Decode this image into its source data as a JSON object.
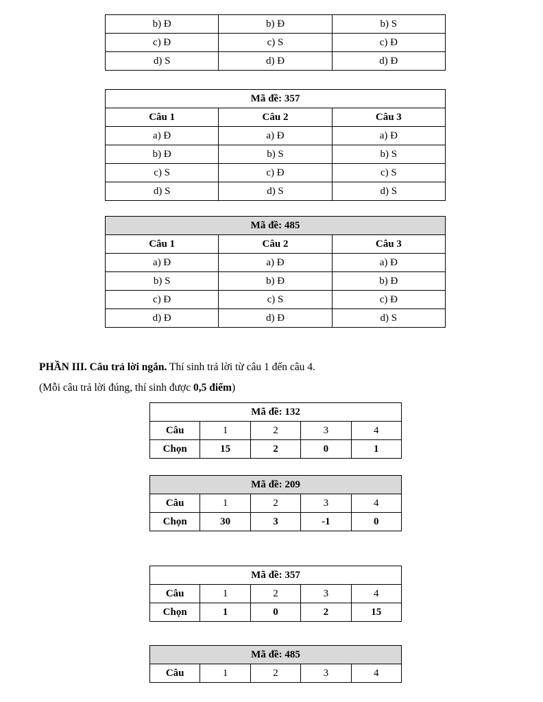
{
  "paragraphs": {
    "heading_bold": "PHẦN III. Câu trả lời ngắn.",
    "heading_rest": " Thí sinh trả lời từ câu 1 đến câu 4.",
    "note_prefix": "(Mỗi câu trả lời đúng, thí sinh được ",
    "note_bold": "0,5 điểm",
    "note_suffix": ")"
  },
  "colors": {
    "header_shading": "#d9d9d9",
    "table_border": "#000000"
  },
  "partial_table": {
    "rows": [
      [
        "b) Đ",
        "b) Đ",
        "b) S"
      ],
      [
        "c) Đ",
        "c) S",
        "c) Đ"
      ],
      [
        "d) S",
        "d) Đ",
        "d) Đ"
      ]
    ]
  },
  "tf_tables": [
    {
      "title": "Mã đề: 357",
      "header_shaded": false,
      "columns": [
        "Câu 1",
        "Câu 2",
        "Câu 3"
      ],
      "rows": [
        [
          "a) Đ",
          "a) Đ",
          "a) Đ"
        ],
        [
          "b) Đ",
          "b) S",
          "b) S"
        ],
        [
          "c) S",
          "c) Đ",
          "c) S"
        ],
        [
          "d) S",
          "d) S",
          "d) S"
        ]
      ]
    },
    {
      "title": "Mã đề: 485",
      "header_shaded": true,
      "columns": [
        "Câu 1",
        "Câu 2",
        "Câu 3"
      ],
      "rows": [
        [
          "a) Đ",
          "a) Đ",
          "a) Đ"
        ],
        [
          "b) S",
          "b) Đ",
          "b) Đ"
        ],
        [
          "c) Đ",
          "c) S",
          "c) Đ"
        ],
        [
          "d) Đ",
          "d) Đ",
          "d) S"
        ]
      ]
    }
  ],
  "short_tables": [
    {
      "title": "Mã đề: 132",
      "header_shaded": false,
      "question_label": "Câu",
      "answer_label": "Chọn",
      "questions": [
        "1",
        "2",
        "3",
        "4"
      ],
      "answers": [
        "15",
        "2",
        "0",
        "1"
      ]
    },
    {
      "title": "Mã đề: 209",
      "header_shaded": true,
      "question_label": "Câu",
      "answer_label": "Chọn",
      "questions": [
        "1",
        "2",
        "3",
        "4"
      ],
      "answers": [
        "30",
        "3",
        "-1",
        "0"
      ]
    },
    {
      "title": "Mã đề: 357",
      "header_shaded": false,
      "question_label": "Câu",
      "answer_label": "Chọn",
      "questions": [
        "1",
        "2",
        "3",
        "4"
      ],
      "answers": [
        "1",
        "0",
        "2",
        "15"
      ]
    },
    {
      "title": "Mã đề: 485",
      "header_shaded": true,
      "question_label": "Câu",
      "questions": [
        "1",
        "2",
        "3",
        "4"
      ],
      "answers": null
    }
  ]
}
